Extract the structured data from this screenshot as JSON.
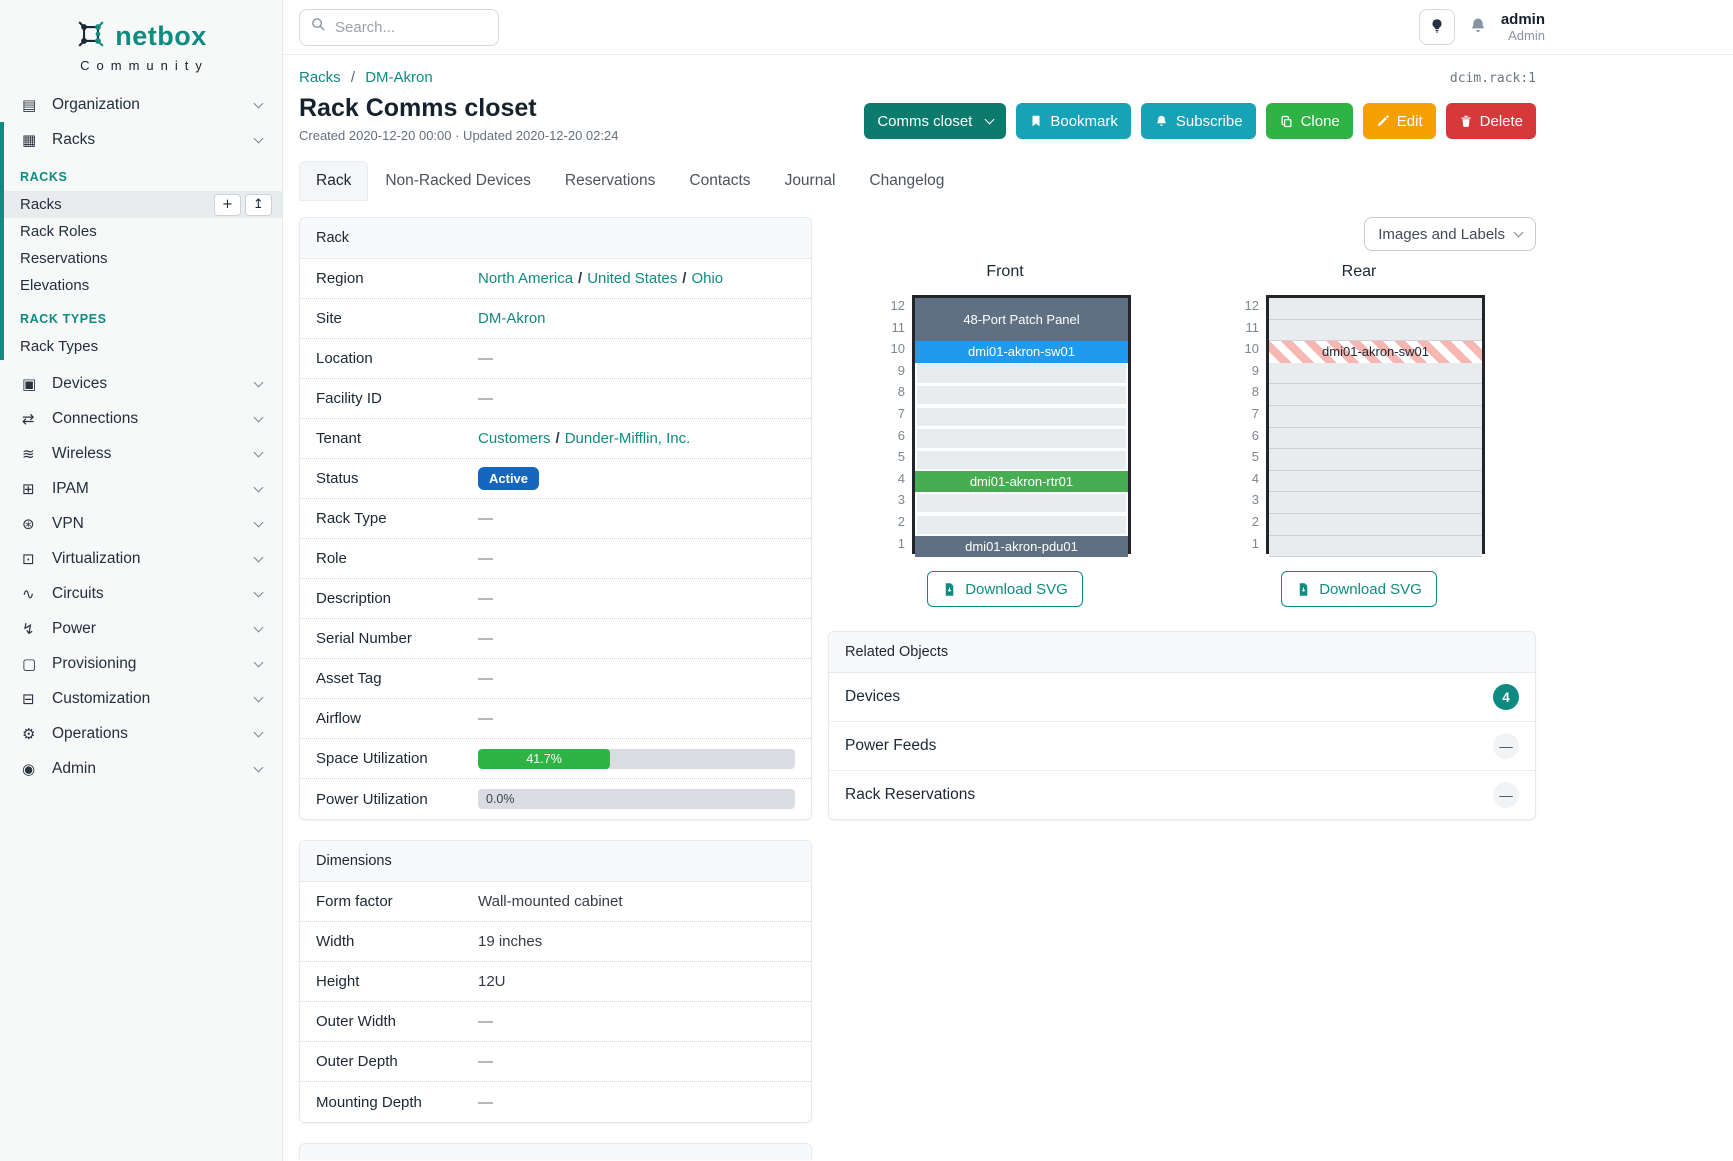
{
  "topbar": {
    "search_placeholder": "Search...",
    "user_name": "admin",
    "user_role": "Admin"
  },
  "sidebar": {
    "logo_title": "netbox",
    "logo_subtitle": "Community",
    "nav_top": [
      {
        "label": "Organization",
        "glyph": "▤"
      }
    ],
    "expanded_parent": {
      "label": "Racks",
      "glyph": "▦"
    },
    "groups": [
      {
        "header": "RACKS",
        "items": [
          {
            "label": "Racks",
            "active": true,
            "actions": [
              {
                "name": "add",
                "glyph": "+"
              },
              {
                "name": "import",
                "glyph": "↥"
              }
            ]
          },
          {
            "label": "Rack Roles"
          },
          {
            "label": "Reservations"
          },
          {
            "label": "Elevations"
          }
        ]
      },
      {
        "header": "RACK TYPES",
        "items": [
          {
            "label": "Rack Types"
          }
        ]
      }
    ],
    "nav_bottom": [
      {
        "label": "Devices",
        "glyph": "▣"
      },
      {
        "label": "Connections",
        "glyph": "⇄"
      },
      {
        "label": "Wireless",
        "glyph": "≋"
      },
      {
        "label": "IPAM",
        "glyph": "⊞"
      },
      {
        "label": "VPN",
        "glyph": "⊛"
      },
      {
        "label": "Virtualization",
        "glyph": "⊡"
      },
      {
        "label": "Circuits",
        "glyph": "∿"
      },
      {
        "label": "Power",
        "glyph": "↯"
      },
      {
        "label": "Provisioning",
        "glyph": "▢"
      },
      {
        "label": "Customization",
        "glyph": "⊟"
      },
      {
        "label": "Operations",
        "glyph": "⚙"
      },
      {
        "label": "Admin",
        "glyph": "◉"
      }
    ]
  },
  "header": {
    "breadcrumb": [
      {
        "label": "Racks"
      },
      {
        "label": "DM-Akron"
      }
    ],
    "object_id": "dcim.rack:1",
    "title": "Rack Comms closet",
    "meta": "Created 2020-12-20 00:00 · Updated 2020-12-20 02:24",
    "actions": [
      {
        "label": "Comms closet",
        "color": "#0c7b6d",
        "icon": "chevron",
        "name": "comms-closet-dropdown"
      },
      {
        "label": "Bookmark",
        "color": "#17a2b8",
        "icon": "bookmark",
        "name": "bookmark-button"
      },
      {
        "label": "Subscribe",
        "color": "#17a2b8",
        "icon": "bell",
        "name": "subscribe-button"
      },
      {
        "label": "Clone",
        "color": "#2fb344",
        "icon": "copy",
        "name": "clone-button"
      },
      {
        "label": "Edit",
        "color": "#f59f00",
        "icon": "pencil",
        "name": "edit-button"
      },
      {
        "label": "Delete",
        "color": "#d63939",
        "icon": "trash",
        "name": "delete-button"
      }
    ]
  },
  "tabs": [
    {
      "label": "Rack",
      "active": true
    },
    {
      "label": "Non-Racked Devices"
    },
    {
      "label": "Reservations"
    },
    {
      "label": "Contacts"
    },
    {
      "label": "Journal"
    },
    {
      "label": "Changelog"
    }
  ],
  "rack_panel": {
    "title": "Rack",
    "rows": [
      {
        "label": "Region",
        "type": "links",
        "links": [
          "North America",
          "United States",
          "Ohio"
        ]
      },
      {
        "label": "Site",
        "type": "links",
        "links": [
          "DM-Akron"
        ]
      },
      {
        "label": "Location",
        "type": "dash"
      },
      {
        "label": "Facility ID",
        "type": "dash"
      },
      {
        "label": "Tenant",
        "type": "links",
        "links": [
          "Customers",
          "Dunder-Mifflin, Inc."
        ]
      },
      {
        "label": "Status",
        "type": "badge",
        "value": "Active",
        "color": "#1566bf"
      },
      {
        "label": "Rack Type",
        "type": "dash"
      },
      {
        "label": "Role",
        "type": "dash"
      },
      {
        "label": "Description",
        "type": "dash"
      },
      {
        "label": "Serial Number",
        "type": "dash"
      },
      {
        "label": "Asset Tag",
        "type": "dash"
      },
      {
        "label": "Airflow",
        "type": "dash"
      },
      {
        "label": "Space Utilization",
        "type": "progress",
        "value": "41.7%",
        "pct": 41.7,
        "fill": "#2fb344",
        "inside": true
      },
      {
        "label": "Power Utilization",
        "type": "progress",
        "value": "0.0%",
        "pct": 0,
        "fill": "#2fb344",
        "inside": false
      }
    ]
  },
  "dimensions_panel": {
    "title": "Dimensions",
    "rows": [
      {
        "label": "Form factor",
        "type": "text",
        "value": "Wall-mounted cabinet"
      },
      {
        "label": "Width",
        "type": "text",
        "value": "19 inches"
      },
      {
        "label": "Height",
        "type": "text",
        "value": "12U"
      },
      {
        "label": "Outer Width",
        "type": "dash"
      },
      {
        "label": "Outer Depth",
        "type": "dash"
      },
      {
        "label": "Mounting Depth",
        "type": "dash"
      }
    ]
  },
  "elevations": {
    "view_toggle": "Images and Labels",
    "download_label": "Download SVG",
    "total_units": 12,
    "front": {
      "title": "Front",
      "devices": [
        {
          "name": "48-Port Patch Panel",
          "top_unit": 12,
          "u_height": 2,
          "color": "#5e7081",
          "text_color": "#ffffff"
        },
        {
          "name": "dmi01-akron-sw01",
          "top_unit": 10,
          "u_height": 1,
          "color": "#1e9bee",
          "text_color": "#ffffff"
        },
        {
          "name": "dmi01-akron-rtr01",
          "top_unit": 4,
          "u_height": 1,
          "color": "#47ad52",
          "text_color": "#ffffff"
        },
        {
          "name": "dmi01-akron-pdu01",
          "top_unit": 1,
          "u_height": 1,
          "color": "#5e7081",
          "text_color": "#ffffff"
        }
      ]
    },
    "rear": {
      "title": "Rear",
      "devices": [
        {
          "name": "dmi01-akron-sw01",
          "top_unit": 10,
          "u_height": 1,
          "pattern": "stripes",
          "text_color": "#1b2733"
        }
      ]
    }
  },
  "related_objects": {
    "title": "Related Objects",
    "rows": [
      {
        "label": "Devices",
        "count": "4",
        "style": "count"
      },
      {
        "label": "Power Feeds",
        "count": "—",
        "style": "empty"
      },
      {
        "label": "Rack Reservations",
        "count": "—",
        "style": "empty"
      }
    ]
  }
}
